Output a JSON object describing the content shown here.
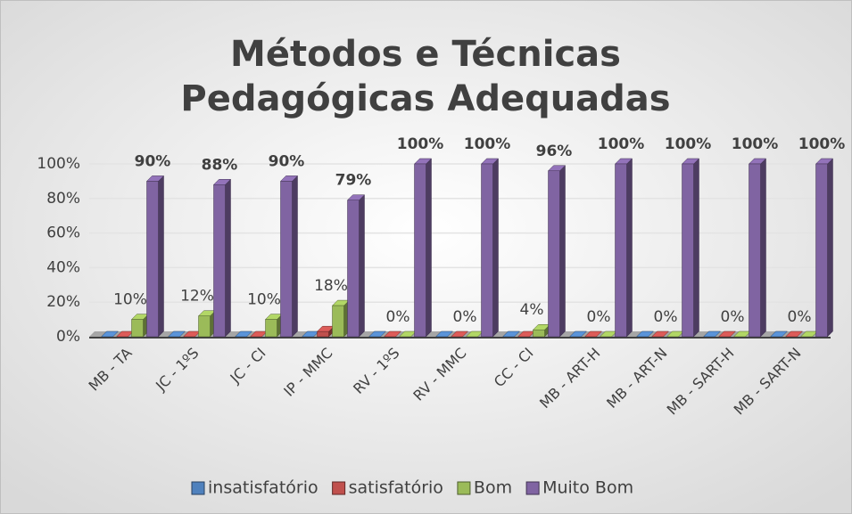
{
  "chart_data": {
    "type": "bar3d",
    "title": "Métodos e Técnicas Pedagógicas Adequadas",
    "categories": [
      "MB - TA",
      "JC - 1ºS",
      "JC - CI",
      "IP - MMC",
      "RV - 1ºS",
      "RV - MMC",
      "CC - CI",
      "MB - ART-H",
      "MB - ART-N",
      "MB - SART-H",
      "MB - SART-N"
    ],
    "series": [
      {
        "name": "insatisfatório",
        "color": "#4f81bd",
        "values": [
          0,
          0,
          0,
          0,
          0,
          0,
          0,
          0,
          0,
          0,
          0
        ]
      },
      {
        "name": "satisfatório",
        "color": "#c0504d",
        "values": [
          0,
          0,
          0,
          3,
          0,
          0,
          0,
          0,
          0,
          0,
          0
        ]
      },
      {
        "name": "Bom",
        "color": "#9bbb59",
        "values": [
          10,
          12,
          10,
          18,
          0,
          0,
          4,
          0,
          0,
          0,
          0
        ],
        "value_labels": [
          "10%",
          "12%",
          "10%",
          "18%",
          "0%",
          "0%",
          "4%",
          "0%",
          "0%",
          "0%",
          "0%"
        ]
      },
      {
        "name": "Muito Bom",
        "color": "#8064a2",
        "values": [
          90,
          88,
          90,
          79,
          100,
          100,
          96,
          100,
          100,
          100,
          100
        ],
        "value_labels": [
          "90%",
          "88%",
          "90%",
          "79%",
          "100%",
          "100%",
          "96%",
          "100%",
          "100%",
          "100%",
          "100%"
        ]
      }
    ],
    "ylim": [
      0,
      100
    ],
    "yticks": [
      {
        "value": 0,
        "label": "0%"
      },
      {
        "value": 20,
        "label": "20%"
      },
      {
        "value": 40,
        "label": "40%"
      },
      {
        "value": 60,
        "label": "60%"
      },
      {
        "value": 80,
        "label": "80%"
      },
      {
        "value": 100,
        "label": "100%"
      }
    ],
    "grid": true,
    "legend": "bottom"
  }
}
